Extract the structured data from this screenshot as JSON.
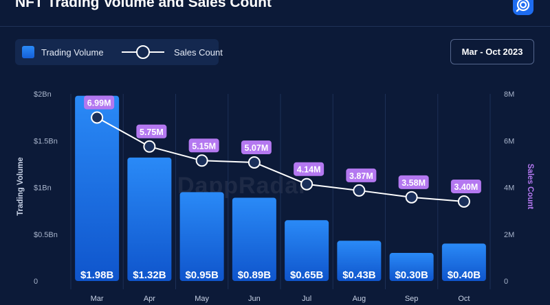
{
  "header": {
    "title": "NFT Trading Volume and Sales Count"
  },
  "brand": {
    "logo_icon": "dappradar-logo-icon",
    "watermark": "DappRadar"
  },
  "legend": {
    "volume_label": "Trading Volume",
    "sales_label": "Sales Count"
  },
  "date_range": "Mar - Oct 2023",
  "colors": {
    "background": "#0c1a38",
    "bar_top": "#2a8af7",
    "bar_bottom": "#0f55cc",
    "line": "#ffffff",
    "label_badge": "#b478f0"
  },
  "chart_data": {
    "type": "bar",
    "categories": [
      "Mar",
      "Apr",
      "May",
      "Jun",
      "Jul",
      "Aug",
      "Sep",
      "Oct"
    ],
    "series": [
      {
        "name": "Trading Volume",
        "type": "bar",
        "axis": "left",
        "values": [
          1.98,
          1.32,
          0.95,
          0.89,
          0.65,
          0.43,
          0.3,
          0.4
        ],
        "labels": [
          "$1.98B",
          "$1.32B",
          "$0.95B",
          "$0.89B",
          "$0.65B",
          "$0.43B",
          "$0.30B",
          "$0.40B"
        ]
      },
      {
        "name": "Sales Count",
        "type": "line",
        "axis": "right",
        "values": [
          6.99,
          5.75,
          5.15,
          5.07,
          4.14,
          3.87,
          3.58,
          3.4
        ],
        "labels": [
          "6.99M",
          "5.75M",
          "5.15M",
          "5.07M",
          "4.14M",
          "3.87M",
          "3.58M",
          "3.40M"
        ]
      }
    ],
    "ylabel": "Trading Volume",
    "y2label": "Sales Count",
    "ylim": [
      0,
      2
    ],
    "y2lim": [
      0,
      8
    ],
    "yticks": [
      "0",
      "$0.5Bn",
      "$1Bn",
      "$1.5Bn",
      "$2Bn"
    ],
    "y2ticks": [
      "0",
      "2M",
      "4M",
      "6M",
      "8M"
    ],
    "grid": true,
    "legend_position": "top-left"
  }
}
